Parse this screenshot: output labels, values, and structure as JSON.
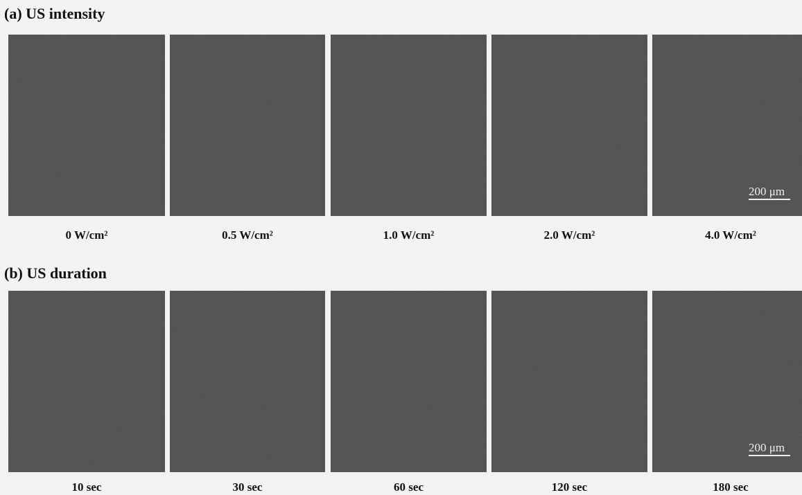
{
  "panels": [
    {
      "title": "(a) US intensity",
      "scale_bar": "200 μm",
      "images": [
        {
          "label": "0 W/cm²"
        },
        {
          "label": "0.5 W/cm²"
        },
        {
          "label": "1.0 W/cm²"
        },
        {
          "label": "2.0 W/cm²"
        },
        {
          "label": "4.0 W/cm²"
        }
      ]
    },
    {
      "title": "(b) US duration",
      "scale_bar": "200 μm",
      "images": [
        {
          "label": "10 sec"
        },
        {
          "label": "30 sec"
        },
        {
          "label": "60 sec"
        },
        {
          "label": "120 sec"
        },
        {
          "label": "180 sec"
        }
      ]
    }
  ]
}
